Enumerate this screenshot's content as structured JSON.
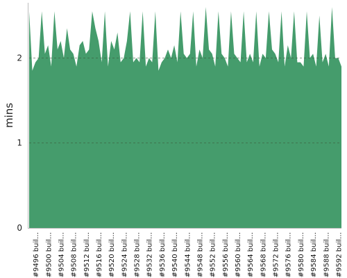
{
  "chart_data": {
    "type": "area",
    "ylabel": "mins",
    "ylim": [
      0,
      2.65
    ],
    "yticks": [
      0,
      1,
      2
    ],
    "grid": true,
    "color": "#459c6c",
    "x_labels": [
      "#9496 buil…",
      "#9500 buil…",
      "#9504 buil…",
      "#9508 buil…",
      "#9512 buil…",
      "#9516 buil…",
      "#9520 buil…",
      "#9524 buil…",
      "#9528 buil…",
      "#9532 buil…",
      "#9536 buil…",
      "#9540 buil…",
      "#9544 buil…",
      "#9548 buil…",
      "#9552 buil…",
      "#9556 buil…",
      "#9560 buil…",
      "#9564 buil…",
      "#9568 buil…",
      "#9572 buil…",
      "#9576 buil…",
      "#9580 buil…",
      "#9584 buil…",
      "#9588 buil…",
      "#9592 buil…"
    ],
    "x_start": 9494,
    "values": [
      2.55,
      1.85,
      1.95,
      2.0,
      2.55,
      2.05,
      2.15,
      1.9,
      2.55,
      2.1,
      2.2,
      2.0,
      2.35,
      2.1,
      2.05,
      1.9,
      2.15,
      2.2,
      2.05,
      2.1,
      2.55,
      2.35,
      2.2,
      1.95,
      2.55,
      1.9,
      2.2,
      2.1,
      2.3,
      1.95,
      2.0,
      2.2,
      2.55,
      1.95,
      2.0,
      1.95,
      2.55,
      1.9,
      2.0,
      1.95,
      2.55,
      1.85,
      1.95,
      2.0,
      2.1,
      2.0,
      2.15,
      1.95,
      2.55,
      2.05,
      2.0,
      2.05,
      2.55,
      1.9,
      2.1,
      2.0,
      2.6,
      2.1,
      2.05,
      1.9,
      2.55,
      2.05,
      2.0,
      1.9,
      2.55,
      2.05,
      2.0,
      1.95,
      2.55,
      1.95,
      2.05,
      1.95,
      2.55,
      1.9,
      2.05,
      2.0,
      2.55,
      2.1,
      2.05,
      1.95,
      2.55,
      1.9,
      2.15,
      2.0,
      2.55,
      1.95,
      1.95,
      1.9,
      2.55,
      2.0,
      2.05,
      1.9,
      2.5,
      1.95,
      2.05,
      1.9,
      2.6,
      2.0,
      2.0,
      1.9
    ]
  }
}
